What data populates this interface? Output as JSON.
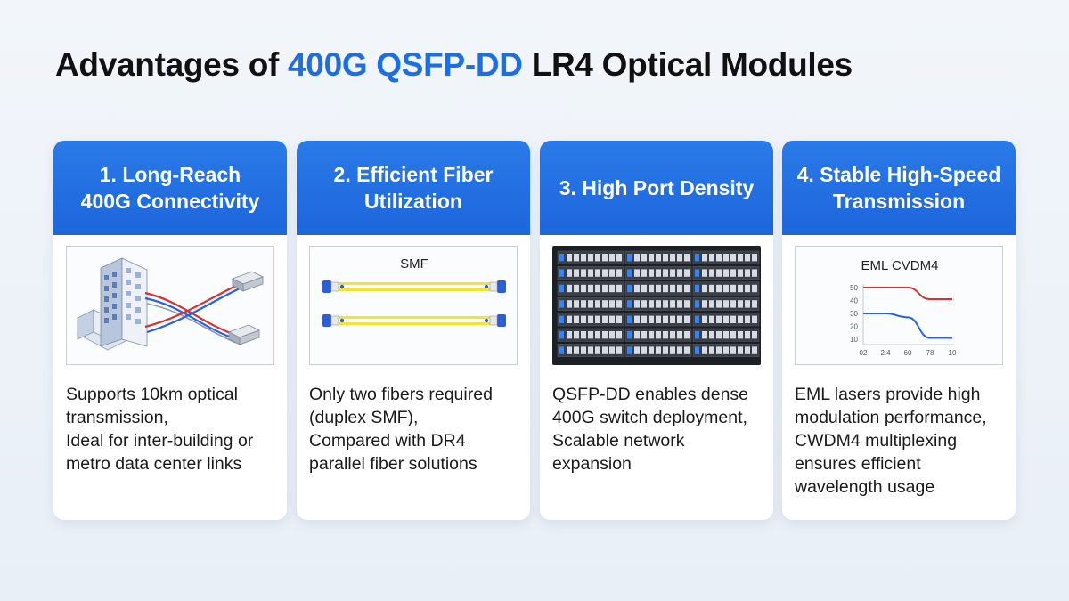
{
  "title": {
    "prefix": "Advantages of ",
    "highlight": "400G QSFP-DD",
    "suffix": " LR4 Optical Modules"
  },
  "colors": {
    "accent": "#1e6ee0",
    "card_header": "#1d66dc",
    "fiber_yellow": "#f3e335",
    "connector_blue": "#2a5fd6",
    "line_red": "#d93030",
    "line_blue": "#2a62d8"
  },
  "cards": [
    {
      "heading": [
        "1. Long-Reach",
        "400G Connectivity"
      ],
      "illustration": "building-fiber-link-icon",
      "description": [
        "Supports 10km optical",
        "transmission,",
        "Ideal for inter-building or",
        "metro data center links"
      ]
    },
    {
      "heading": [
        "2. Efficient Fiber",
        "Utilization"
      ],
      "illustration": "duplex-fiber-cable-icon",
      "label": "SMF",
      "description": [
        "Only two fibers required",
        "(duplex SMF),",
        "Compared with DR4",
        "parallel fiber solutions"
      ]
    },
    {
      "heading": [
        "3. High Port Density"
      ],
      "illustration": "switch-rack-icon",
      "description": [
        "QSFP-DD enables dense",
        "400G switch deployment,",
        "Scalable network",
        "expansion"
      ]
    },
    {
      "heading": [
        "4. Stable High-Speed",
        "Transmission"
      ],
      "illustration": "wavelength-chart-icon",
      "label": "EML CVDM4",
      "description": [
        "EML lasers provide high",
        "modulation performance,",
        "CWDM4 multiplexing",
        "ensures efficient",
        "wavelength usage"
      ]
    }
  ],
  "mini_chart": {
    "y_ticks": [
      "50",
      "40",
      "30",
      "20",
      "10"
    ],
    "x_ticks": [
      "02",
      "2.4",
      "60",
      "78",
      "10"
    ],
    "series": [
      {
        "color": "#d93030",
        "values": [
          50,
          50,
          50,
          41,
          41
        ]
      },
      {
        "color": "#2a62d8",
        "values": [
          30,
          30,
          27,
          11,
          11
        ]
      }
    ]
  }
}
